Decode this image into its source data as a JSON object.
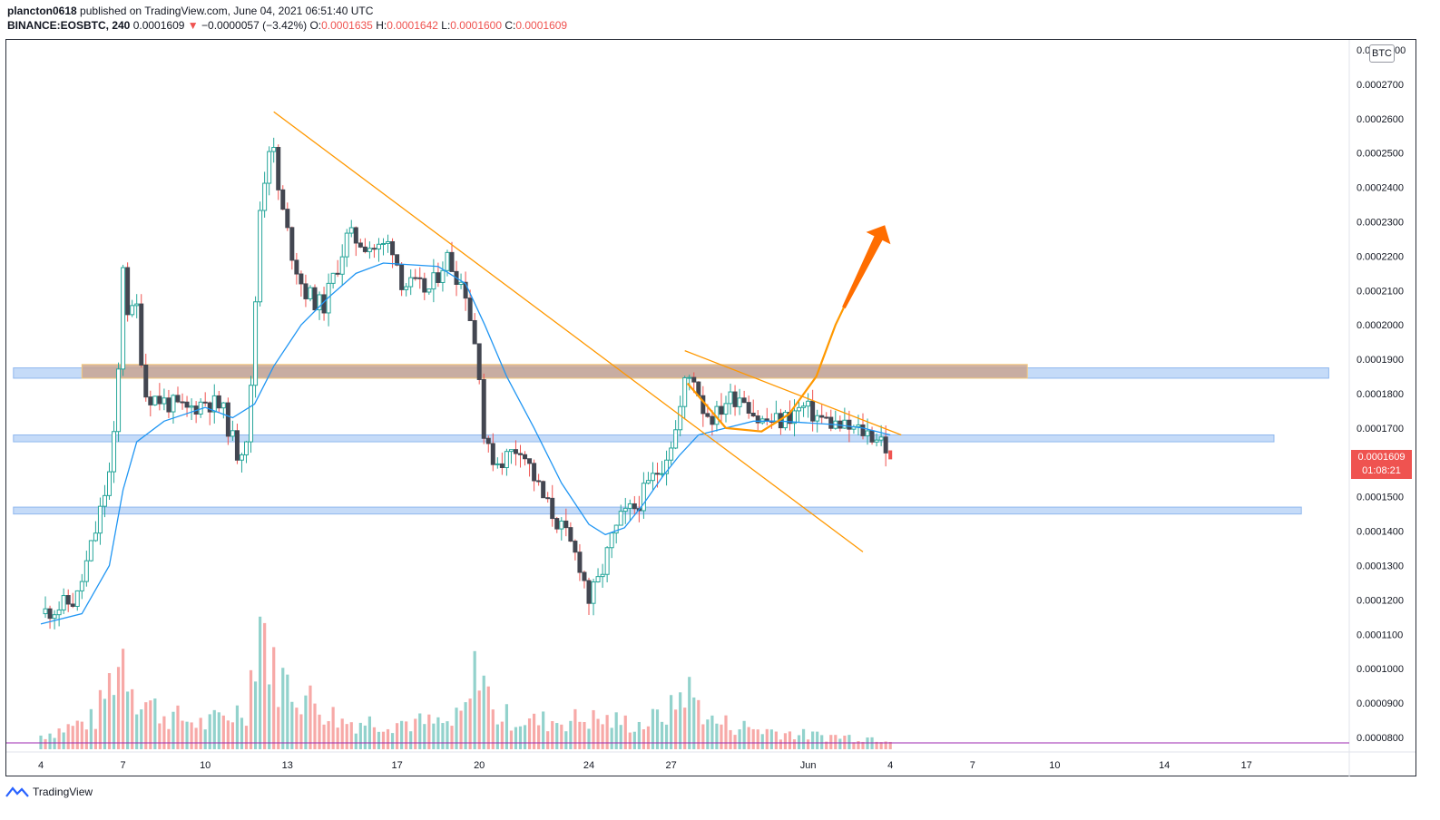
{
  "header": {
    "publisher": "plancton0618",
    "published_text": "published on TradingView.com, June 04, 2021 06:51:40 UTC",
    "symbol": "BINANCE:EOSBTC, 240",
    "last": "0.0001609",
    "change_arrow": "▼",
    "change": "−0.0000057 (−3.42%)",
    "o_label": "O:",
    "o_value": "0.0001635",
    "h_label": "H:",
    "h_value": "0.0001642",
    "l_label": "L:",
    "l_value": "0.0001600",
    "c_label": "C:",
    "c_value": "0.0001609"
  },
  "currency_label": "BTC",
  "price_tag": {
    "price": "0.0001609",
    "countdown": "01:08:21"
  },
  "footer": {
    "brand": "TradingView",
    "icon": "tradingview-logo-icon"
  },
  "colors": {
    "up": "#26a69a",
    "down": "#ef5350",
    "candle_body_dark": "#434651",
    "ma": "#2196f3",
    "trendline": "#ff9800",
    "zone_blue": "#b2cff5",
    "zone_orange": "#c8a593",
    "arrow": "#ff6d00"
  },
  "chart_data": {
    "type": "candlestick",
    "symbol": "BINANCE:EOSBTC",
    "interval": "240",
    "y_axis": {
      "range": [
        7.75e-05,
        0.0002815
      ],
      "ticks": [
        "0.0002700",
        "0.0002600",
        "0.0002500",
        "0.0002400",
        "0.0002300",
        "0.0002200",
        "0.0002100",
        "0.0002000",
        "0.0001900",
        "0.0001800",
        "0.0001700",
        "0.0001600",
        "0.0001500",
        "0.0001400",
        "0.0001300",
        "0.0001200",
        "0.0001100",
        "0.0001000",
        "0.0000900",
        "0.0000800"
      ],
      "top_tick_partial": [
        "0.0",
        "00"
      ]
    },
    "x_axis": {
      "ticks": [
        {
          "label": "4",
          "day": 0
        },
        {
          "label": "7",
          "day": 3
        },
        {
          "label": "10",
          "day": 6
        },
        {
          "label": "13",
          "day": 9
        },
        {
          "label": "17",
          "day": 13
        },
        {
          "label": "20",
          "day": 16
        },
        {
          "label": "24",
          "day": 20
        },
        {
          "label": "27",
          "day": 23
        },
        {
          "label": "Jun",
          "day": 28
        },
        {
          "label": "4",
          "day": 31
        },
        {
          "label": "7",
          "day": 34
        },
        {
          "label": "10",
          "day": 37
        },
        {
          "label": "14",
          "day": 41
        },
        {
          "label": "17",
          "day": 44
        }
      ]
    },
    "price_path": [
      [
        0,
        0.000116
      ],
      [
        1.3,
        0.00012
      ],
      [
        2,
        0.00014
      ],
      [
        2.6,
        0.00016
      ],
      [
        2.8,
        0.00018
      ],
      [
        3,
        0.000218
      ],
      [
        3.2,
        0.000202
      ],
      [
        3.5,
        0.000205
      ],
      [
        3.8,
        0.00018
      ],
      [
        4.4,
        0.000178
      ],
      [
        5.3,
        0.000175
      ],
      [
        6,
        0.000178
      ],
      [
        6.6,
        0.000176
      ],
      [
        7.2,
        0.000162
      ],
      [
        7.6,
        0.00017
      ],
      [
        8,
        0.000234
      ],
      [
        8.4,
        0.000256
      ],
      [
        8.7,
        0.000237
      ],
      [
        9.2,
        0.00022
      ],
      [
        9.6,
        0.00021
      ],
      [
        10.3,
        0.000205
      ],
      [
        11.2,
        0.000226
      ],
      [
        12.3,
        0.000222
      ],
      [
        12.8,
        0.000224
      ],
      [
        13.2,
        0.000212
      ],
      [
        14.2,
        0.00021
      ],
      [
        14.8,
        0.00022
      ],
      [
        15.5,
        0.00021
      ],
      [
        16,
        0.000187
      ],
      [
        16.2,
        0.000164
      ],
      [
        16.7,
        0.00016
      ],
      [
        17.5,
        0.000165
      ],
      [
        18.3,
        0.00015
      ],
      [
        19.2,
        0.000138
      ],
      [
        19.7,
        0.00013
      ],
      [
        20,
        0.00012
      ],
      [
        20.4,
        0.000126
      ],
      [
        20.8,
        0.000137
      ],
      [
        21.2,
        0.000144
      ],
      [
        21.7,
        0.000147
      ],
      [
        22.3,
        0.000155
      ],
      [
        22.7,
        0.00016
      ],
      [
        23.2,
        0.00017
      ],
      [
        23.5,
        0.000183
      ],
      [
        23.8,
        0.000186
      ],
      [
        24.2,
        0.000175
      ],
      [
        24.6,
        0.000173
      ],
      [
        25,
        0.000178
      ],
      [
        25.6,
        0.00018
      ],
      [
        26.2,
        0.000172
      ],
      [
        27,
        0.000172
      ],
      [
        27.8,
        0.000176
      ],
      [
        28.4,
        0.000173
      ],
      [
        29.3,
        0.00017
      ],
      [
        30,
        0.000169
      ],
      [
        30.7,
        0.000167
      ],
      [
        31,
        0.0001609
      ]
    ],
    "volume_profile": [
      [
        0,
        0.1
      ],
      [
        2,
        0.22
      ],
      [
        2.5,
        0.48
      ],
      [
        3,
        0.7
      ],
      [
        3.5,
        0.4
      ],
      [
        4.5,
        0.25
      ],
      [
        6,
        0.18
      ],
      [
        7.5,
        0.3
      ],
      [
        8,
        1.0
      ],
      [
        8.5,
        0.55
      ],
      [
        9.5,
        0.4
      ],
      [
        11,
        0.2
      ],
      [
        13,
        0.2
      ],
      [
        15,
        0.18
      ],
      [
        15.6,
        0.3
      ],
      [
        16,
        0.7
      ],
      [
        16.5,
        0.25
      ],
      [
        18,
        0.2
      ],
      [
        20,
        0.22
      ],
      [
        22,
        0.18
      ],
      [
        23,
        0.28
      ],
      [
        23.5,
        0.45
      ],
      [
        24.5,
        0.2
      ],
      [
        26,
        0.15
      ],
      [
        28,
        0.1
      ],
      [
        31,
        0.08
      ]
    ],
    "ma_path": [
      [
        0,
        0.000113
      ],
      [
        1.5,
        0.000116
      ],
      [
        2.5,
        0.00013
      ],
      [
        3,
        0.000152
      ],
      [
        3.5,
        0.000166
      ],
      [
        4.5,
        0.000172
      ],
      [
        6,
        0.000176
      ],
      [
        7,
        0.000173
      ],
      [
        7.8,
        0.000177
      ],
      [
        8.5,
        0.000188
      ],
      [
        9.5,
        0.0002
      ],
      [
        10.5,
        0.000208
      ],
      [
        11.5,
        0.000215
      ],
      [
        12.5,
        0.000218
      ],
      [
        13.5,
        0.0002175
      ],
      [
        14.5,
        0.000217
      ],
      [
        15.5,
        0.000212
      ],
      [
        16.2,
        0.0002
      ],
      [
        17,
        0.000185
      ],
      [
        18,
        0.00017
      ],
      [
        19,
        0.000154
      ],
      [
        20,
        0.000142
      ],
      [
        20.6,
        0.000139
      ],
      [
        21.3,
        0.000141
      ],
      [
        22,
        0.000148
      ],
      [
        22.7,
        0.000156
      ],
      [
        23.3,
        0.000162
      ],
      [
        24,
        0.000168
      ],
      [
        25,
        0.00017
      ],
      [
        26,
        0.000172
      ],
      [
        27,
        0.000172
      ],
      [
        28,
        0.0001715
      ],
      [
        29,
        0.000171
      ],
      [
        30,
        0.00017
      ],
      [
        31,
        0.000168
      ]
    ],
    "zones": [
      {
        "color": "blue",
        "top": 0.0001875,
        "bottom": 0.0001845,
        "x_start": -1,
        "x_end": 47
      },
      {
        "color": "orange",
        "top": 0.0001885,
        "bottom": 0.0001845,
        "x_start": 1.5,
        "x_end": 36
      },
      {
        "color": "blue",
        "top": 0.000168,
        "bottom": 0.000166,
        "x_start": -1,
        "x_end": 45
      },
      {
        "color": "blue",
        "top": 0.000147,
        "bottom": 0.000145,
        "x_start": -1,
        "x_end": 46
      }
    ],
    "lines": [
      {
        "from": [
          8.5,
          0.000262
        ],
        "to": [
          30.0,
          0.000134
        ]
      },
      {
        "from": [
          23.5,
          0.0001925
        ],
        "to": [
          31.4,
          0.000168
        ]
      }
    ],
    "projection_curve": [
      [
        23.6,
        0.000183
      ],
      [
        25.0,
        0.00017
      ],
      [
        26.3,
        0.000169
      ],
      [
        27.3,
        0.000174
      ],
      [
        28.3,
        0.000185
      ],
      [
        29.0,
        0.0002
      ],
      [
        29.3,
        0.000205
      ]
    ],
    "projection_arrow": {
      "from": [
        29.3,
        0.000205
      ],
      "to": [
        30.8,
        0.000229
      ]
    },
    "candles": [
      [
        0.1,
        0.0001175,
        0.000116
      ],
      [
        0.6,
        0.0001165,
        0.000117
      ],
      [
        1.1,
        0.0001172,
        0.000119
      ],
      [
        1.6,
        0.0001195,
        0.000126
      ],
      [
        2.0,
        0.000126,
        0.000138
      ],
      [
        2.4,
        0.000139,
        0.000156
      ],
      [
        2.7,
        0.000158,
        0.000182
      ],
      [
        3.0,
        0.000185,
        0.000218
      ],
      [
        3.3,
        0.000215,
        0.000202
      ],
      [
        3.6,
        0.000205,
        0.000207
      ],
      [
        3.9,
        0.000207,
        0.000182
      ],
      [
        4.2,
        0.000182,
        0.000176
      ],
      [
        4.6,
        0.000176,
        0.00017
      ],
      [
        5.0,
        0.00017,
        0.000173
      ],
      [
        5.4,
        0.000174,
        0.000172
      ],
      [
        5.8,
        0.000172,
        0.000178
      ],
      [
        6.2,
        0.000179,
        0.000177
      ],
      [
        6.6,
        0.000177,
        0.000173
      ],
      [
        7.0,
        0.000174,
        0.000172
      ],
      [
        7.4,
        0.000172,
        0.000165
      ],
      [
        7.7,
        0.000165,
        0.000165
      ],
      [
        8.0,
        0.000165,
        0.000234
      ],
      [
        8.3,
        0.000236,
        0.000255
      ],
      [
        8.6,
        0.000255,
        0.000238
      ],
      [
        8.9,
        0.000238,
        0.000222
      ],
      [
        9.2,
        0.000224,
        0.00021
      ],
      [
        9.5,
        0.000215,
        0.000211
      ],
      [
        9.9,
        0.00021,
        0.000206
      ],
      [
        10.3,
        0.000206,
        0.000215
      ],
      [
        10.7,
        0.000215,
        0.00022
      ],
      [
        11.1,
        0.000221,
        0.000226
      ],
      [
        11.5,
        0.000226,
        0.000223
      ],
      [
        11.9,
        0.000224,
        0.000226
      ],
      [
        12.3,
        0.000226,
        0.00022
      ],
      [
        12.7,
        0.00022,
        0.000222
      ],
      [
        13.0,
        0.000218,
        0.000213
      ],
      [
        13.4,
        0.000213,
        0.000206
      ],
      [
        13.8,
        0.000207,
        0.00021
      ],
      [
        14.2,
        0.00021,
        0.000212
      ],
      [
        14.6,
        0.000213,
        0.000219
      ],
      [
        15.0,
        0.000219,
        0.000211
      ],
      [
        15.4,
        0.000211,
        0.000212
      ],
      [
        15.8,
        0.00021,
        0.000187
      ],
      [
        16.1,
        0.000186,
        0.000162
      ],
      [
        16.4,
        0.000162,
        0.00016
      ],
      [
        16.8,
        0.000162,
        0.000164
      ],
      [
        17.2,
        0.000165,
        0.000166
      ],
      [
        17.6,
        0.000164,
        0.000158
      ],
      [
        18.0,
        0.000156,
        0.00015
      ],
      [
        18.4,
        0.00015,
        0.000147
      ],
      [
        18.8,
        0.000144,
        0.00014
      ],
      [
        19.2,
        0.00014,
        0.000137
      ],
      [
        19.6,
        0.000133,
        0.000128
      ],
      [
        20.0,
        0.000125,
        0.000121
      ],
      [
        20.3,
        0.000121,
        0.000125
      ],
      [
        20.6,
        0.000126,
        0.000131
      ],
      [
        21.0,
        0.000132,
        0.000138
      ],
      [
        21.4,
        0.00014,
        0.000146
      ],
      [
        21.8,
        0.000147,
        0.000142
      ],
      [
        22.2,
        0.000142,
        0.000151
      ],
      [
        22.6,
        0.000152,
        0.000159
      ],
      [
        23.0,
        0.00016,
        0.000168
      ],
      [
        23.3,
        0.00017,
        0.000178
      ],
      [
        23.6,
        0.00018,
        0.000186
      ],
      [
        23.9,
        0.000186,
        0.000178
      ],
      [
        24.2,
        0.000178,
        0.000172
      ],
      [
        24.5,
        0.000173,
        0.000169
      ],
      [
        24.8,
        0.000169,
        0.000173
      ],
      [
        25.1,
        0.000173,
        0.00018
      ],
      [
        25.5,
        0.000179,
        0.000176
      ],
      [
        25.9,
        0.000175,
        0.000172
      ],
      [
        26.3,
        0.000172,
        0.000173
      ],
      [
        26.7,
        0.000172,
        0.000171
      ],
      [
        27.1,
        0.000171,
        0.000173
      ],
      [
        27.5,
        0.000176,
        0.000178
      ],
      [
        27.9,
        0.000174,
        0.000173
      ],
      [
        28.3,
        0.000173,
        0.000172
      ],
      [
        28.7,
        0.000172,
        0.000173
      ],
      [
        29.1,
        0.000172,
        0.000171
      ],
      [
        29.5,
        0.000171,
        0.00017
      ],
      [
        29.9,
        0.00017,
        0.000169
      ],
      [
        30.3,
        0.000169,
        0.000167
      ],
      [
        30.7,
        0.000167,
        0.000166
      ],
      [
        31.0,
        0.0001635,
        0.0001609
      ]
    ]
  }
}
